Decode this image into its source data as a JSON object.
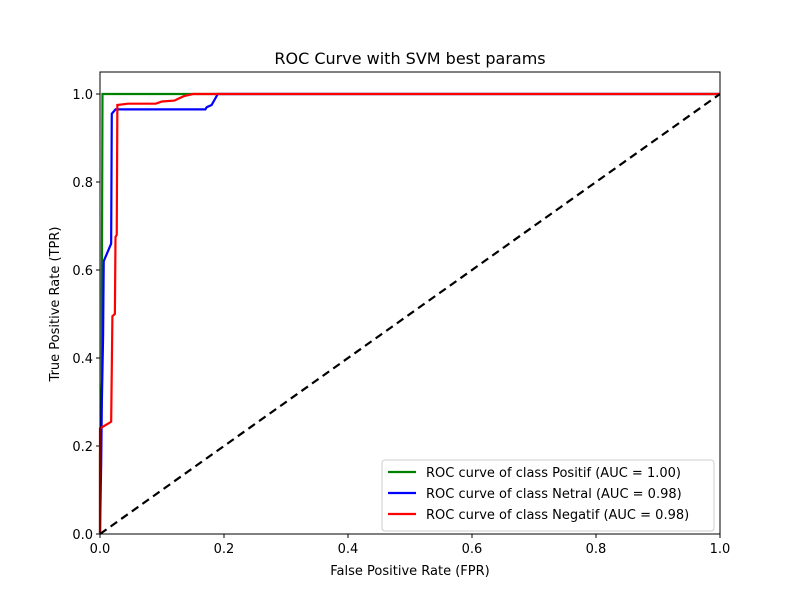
{
  "chart_data": {
    "type": "line",
    "title": "ROC Curve with SVM best params",
    "xlabel": "False Positive Rate (FPR)",
    "ylabel": "True Positive Rate (TPR)",
    "xlim": [
      0.0,
      1.0
    ],
    "ylim": [
      0.0,
      1.05
    ],
    "x_ticks": [
      "0.0",
      "0.2",
      "0.4",
      "0.6",
      "0.8",
      "1.0"
    ],
    "y_ticks": [
      "0.0",
      "0.2",
      "0.4",
      "0.6",
      "0.8",
      "1.0"
    ],
    "grid": false,
    "legend_position": "bottom-right",
    "series": [
      {
        "name": "ROC curve of class Positif (AUC = 1.00)",
        "color": "#008000",
        "points": [
          [
            0.0,
            0.0
          ],
          [
            0.0,
            0.18
          ],
          [
            0.003,
            0.35
          ],
          [
            0.003,
            0.55
          ],
          [
            0.004,
            1.0
          ],
          [
            0.12,
            1.0
          ],
          [
            1.0,
            1.0
          ]
        ]
      },
      {
        "name": "ROC curve of class Netral (AUC = 0.98)",
        "color": "#0000ff",
        "points": [
          [
            0.0,
            0.0
          ],
          [
            0.002,
            0.17
          ],
          [
            0.003,
            0.3
          ],
          [
            0.005,
            0.45
          ],
          [
            0.006,
            0.62
          ],
          [
            0.018,
            0.66
          ],
          [
            0.019,
            0.955
          ],
          [
            0.025,
            0.965
          ],
          [
            0.17,
            0.965
          ],
          [
            0.172,
            0.97
          ],
          [
            0.18,
            0.975
          ],
          [
            0.19,
            1.0
          ],
          [
            1.0,
            1.0
          ]
        ]
      },
      {
        "name": "ROC curve of class Negatif (AUC = 0.98)",
        "color": "#ff0000",
        "points": [
          [
            0.0,
            0.0
          ],
          [
            0.0,
            0.24
          ],
          [
            0.018,
            0.255
          ],
          [
            0.02,
            0.495
          ],
          [
            0.024,
            0.5
          ],
          [
            0.025,
            0.675
          ],
          [
            0.027,
            0.68
          ],
          [
            0.028,
            0.975
          ],
          [
            0.045,
            0.978
          ],
          [
            0.09,
            0.978
          ],
          [
            0.1,
            0.983
          ],
          [
            0.12,
            0.985
          ],
          [
            0.135,
            0.995
          ],
          [
            0.15,
            1.0
          ],
          [
            1.0,
            1.0
          ]
        ]
      },
      {
        "name": "",
        "color": "#000000",
        "dashed": true,
        "points": [
          [
            0.0,
            0.0
          ],
          [
            1.0,
            1.0
          ]
        ]
      }
    ]
  }
}
